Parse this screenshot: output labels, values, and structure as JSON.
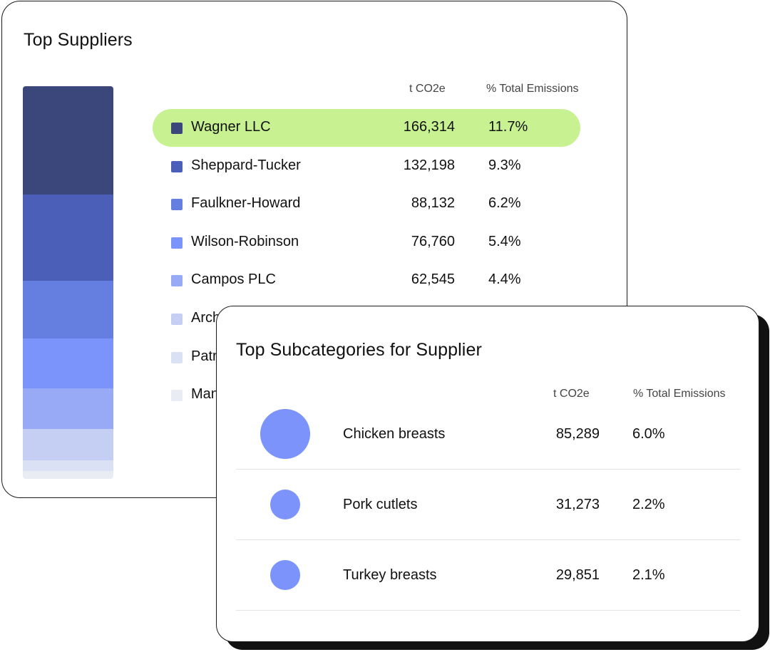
{
  "suppliers_card": {
    "title": "Top Suppliers",
    "col_co2": "t CO2e",
    "col_pct": "% Total Emissions",
    "rows": [
      {
        "name": "Wagner LLC",
        "value": "166,314",
        "pct": "11.7%",
        "color": "#3b477a",
        "highlighted": true
      },
      {
        "name": "Sheppard-Tucker",
        "value": "132,198",
        "pct": "9.3%",
        "color": "#4b5fb8"
      },
      {
        "name": "Faulkner-Howard",
        "value": "88,132",
        "pct": "6.2%",
        "color": "#647fe0"
      },
      {
        "name": "Wilson-Robinson",
        "value": "76,760",
        "pct": "5.4%",
        "color": "#7b94fb"
      },
      {
        "name": "Campos PLC",
        "value": "62,545",
        "pct": "4.4%",
        "color": "#98a9f5"
      },
      {
        "name": "Arch",
        "value": "",
        "pct": "",
        "color": "#c5cff4"
      },
      {
        "name": "Patr",
        "value": "",
        "pct": "",
        "color": "#dbe1f4"
      },
      {
        "name": "Man",
        "value": "",
        "pct": "",
        "color": "#e9ecf3"
      }
    ],
    "stack_shares": [
      166314,
      132198,
      88132,
      76760,
      62545,
      48000,
      16000,
      12000
    ]
  },
  "subcategories_card": {
    "title": "Top Subcategories for Supplier",
    "col_co2": "t CO2e",
    "col_pct": "% Total Emissions",
    "bubble_color": "#7b93fb",
    "rows": [
      {
        "name": "Chicken breasts",
        "value": "85,289",
        "pct": "6.0%"
      },
      {
        "name": "Pork cutlets",
        "value": "31,273",
        "pct": "2.2%"
      },
      {
        "name": "Turkey breasts",
        "value": "29,851",
        "pct": "2.1%"
      }
    ]
  }
}
